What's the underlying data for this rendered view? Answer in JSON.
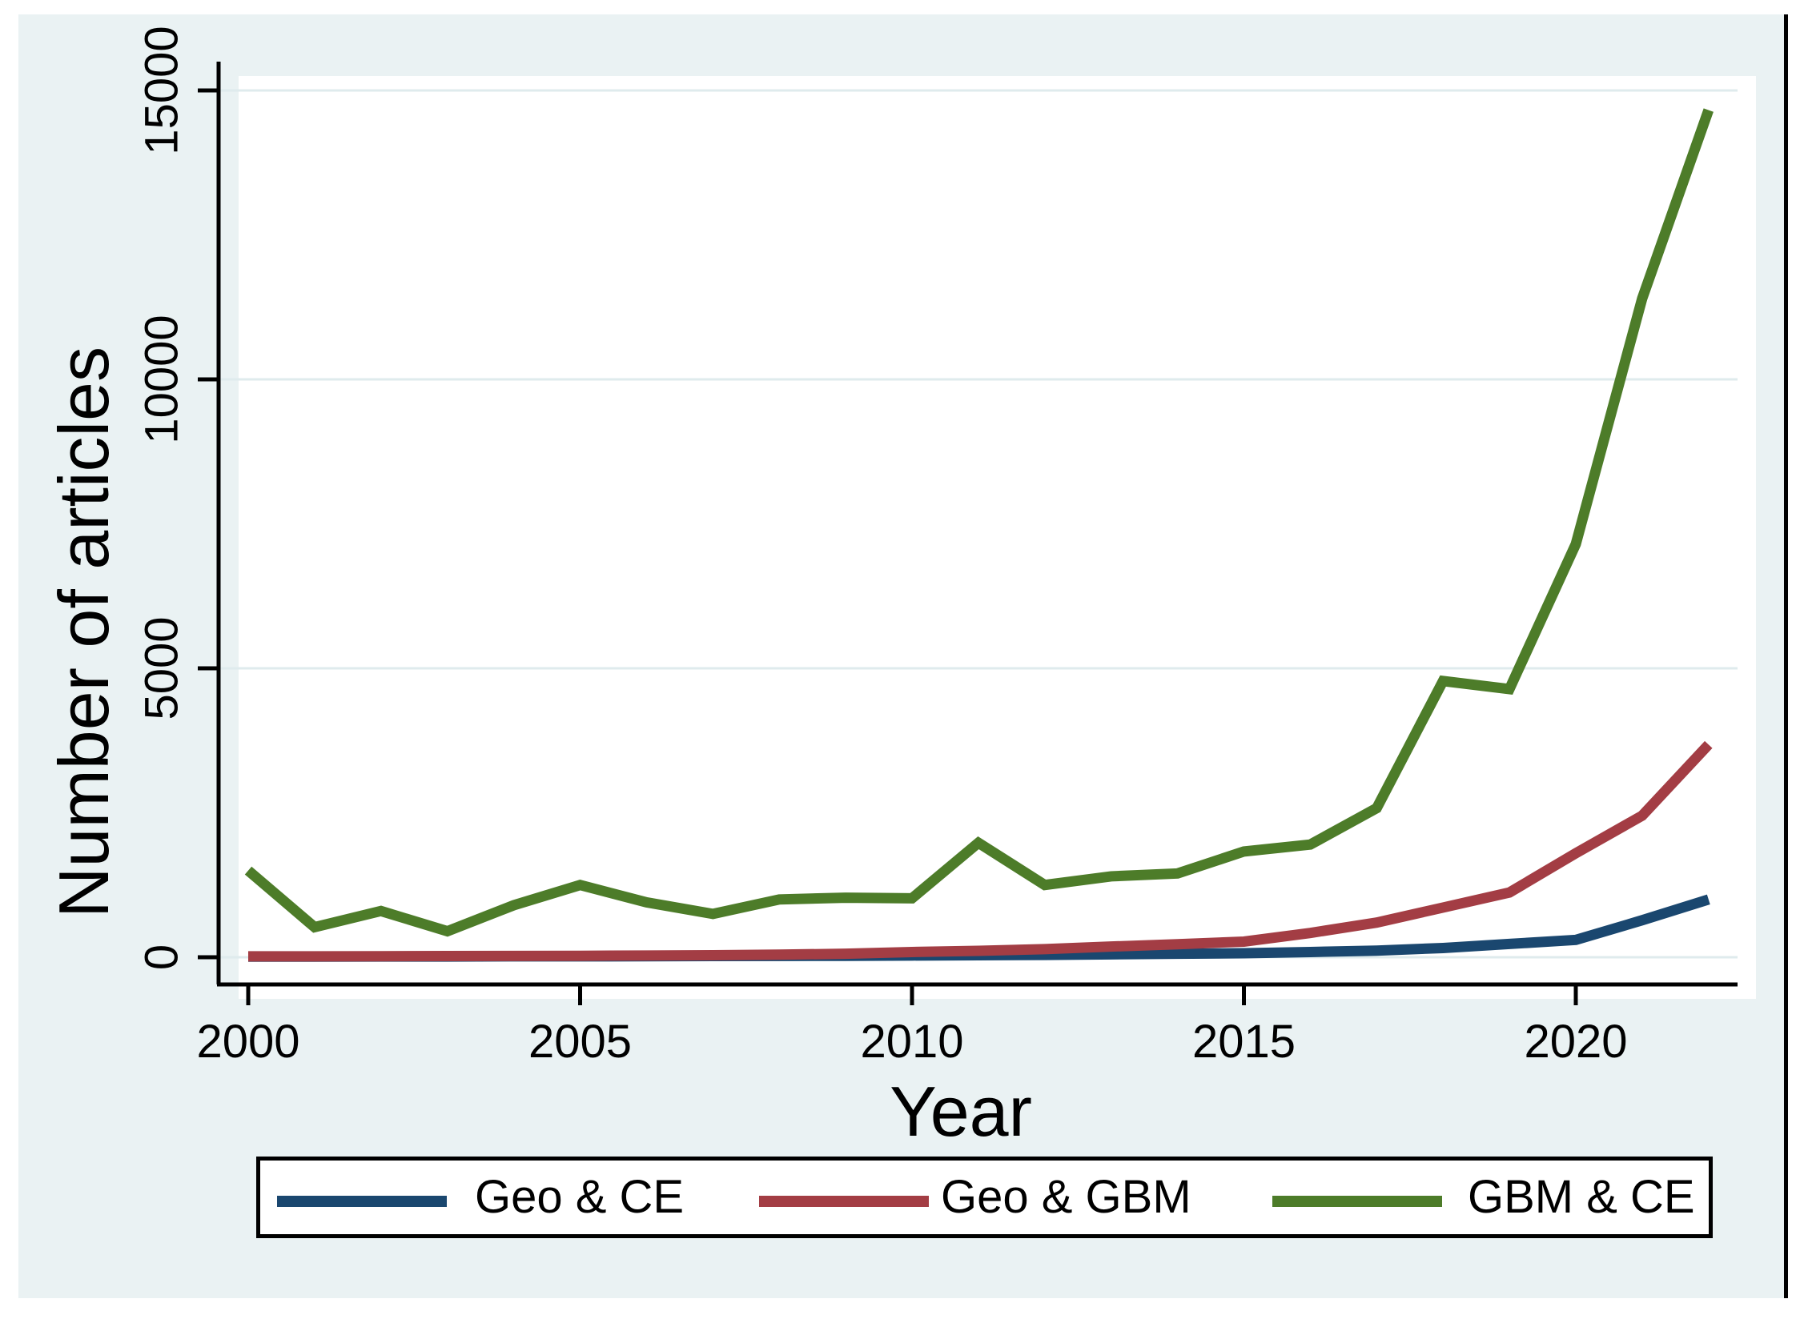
{
  "figure": {
    "x_axis_title": "Year",
    "y_axis_title": "Number of articles"
  },
  "legend": {
    "entries": [
      {
        "label": "Geo & CE",
        "color": "#1a476f"
      },
      {
        "label": "Geo & GBM",
        "color": "#a33d44"
      },
      {
        "label": "GBM & CE",
        "color": "#4d7c29"
      }
    ]
  },
  "chart_data": {
    "type": "line",
    "title": "",
    "xlabel": "Year",
    "ylabel": "Number of articles",
    "x": [
      2000,
      2001,
      2002,
      2003,
      2004,
      2005,
      2006,
      2007,
      2008,
      2009,
      2010,
      2011,
      2012,
      2013,
      2014,
      2015,
      2016,
      2017,
      2018,
      2019,
      2020,
      2021,
      2022
    ],
    "series": [
      {
        "name": "Geo & CE",
        "color": "#1a476f",
        "values": [
          10,
          10,
          12,
          12,
          15,
          15,
          18,
          20,
          22,
          25,
          30,
          35,
          40,
          50,
          60,
          70,
          90,
          115,
          160,
          230,
          300,
          640,
          1000
        ]
      },
      {
        "name": "Geo & GBM",
        "color": "#a33d44",
        "values": [
          15,
          16,
          18,
          20,
          22,
          25,
          30,
          35,
          45,
          60,
          90,
          110,
          140,
          185,
          225,
          270,
          420,
          600,
          860,
          1120,
          1800,
          2450,
          3680
        ]
      },
      {
        "name": "GBM & CE",
        "color": "#4d7c29",
        "values": [
          1500,
          520,
          800,
          450,
          900,
          1250,
          950,
          750,
          1000,
          1030,
          1020,
          1980,
          1250,
          1400,
          1450,
          1830,
          1950,
          2580,
          4780,
          4640,
          7150,
          11400,
          14660
        ]
      }
    ],
    "x_ticks": [
      2000,
      2005,
      2010,
      2015,
      2020
    ],
    "y_ticks": [
      0,
      5000,
      10000,
      15000
    ],
    "xlim": [
      2000,
      2022.4
    ],
    "ylim": [
      0,
      15000
    ],
    "grid": "horizontal",
    "legend_position": "bottom",
    "colors": {
      "canvas_background": "#eaf2f3",
      "plot_background": "#ffffff",
      "gridline": "#dfebed",
      "axis": "#000000"
    }
  }
}
